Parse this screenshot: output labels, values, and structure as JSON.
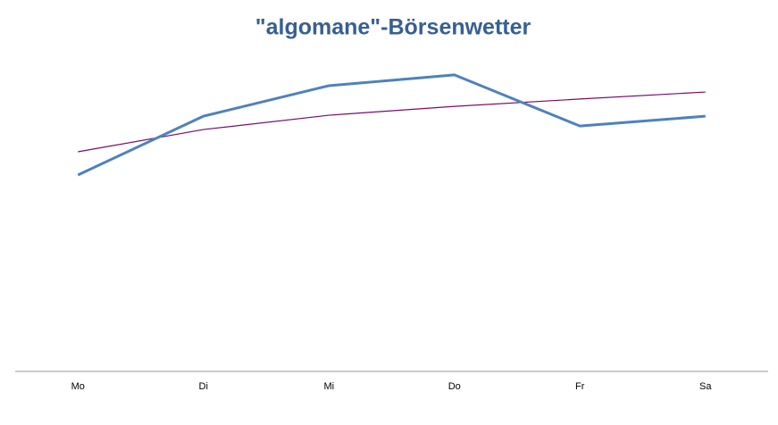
{
  "chart_data": {
    "type": "line",
    "title": "\"algomane\"-Börsenwetter",
    "categories": [
      "Mo",
      "Di",
      "Mi",
      "Do",
      "Fr",
      "Sa"
    ],
    "ylim": [
      0,
      100
    ],
    "series": [
      {
        "color": "#4f81bd",
        "values": [
          61.8,
          80.3,
          89.9,
          93.3,
          77.2,
          80.3
        ]
      },
      {
        "color": "#7a0a6e",
        "values": [
          69.1,
          76.1,
          80.6,
          83.4,
          85.7,
          87.9
        ]
      }
    ]
  }
}
